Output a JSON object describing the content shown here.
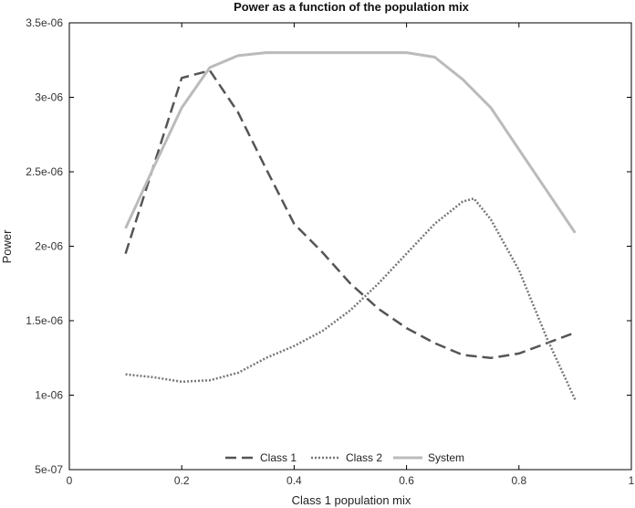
{
  "chart_data": {
    "type": "line",
    "title": "Power as a function of the population mix",
    "xlabel": "Class 1 population mix",
    "ylabel": "Power",
    "xlim": [
      0,
      1
    ],
    "ylim": [
      5e-07,
      3.5e-06
    ],
    "xticks": [
      0,
      0.2,
      0.4,
      0.6,
      0.8,
      1
    ],
    "xtick_labels": [
      "0",
      "0.2",
      "0.4",
      "0.6",
      "0.8",
      "1"
    ],
    "yticks": [
      5e-07,
      1e-06,
      1.5e-06,
      2e-06,
      2.5e-06,
      3e-06,
      3.5e-06
    ],
    "ytick_labels": [
      "5e-07",
      "1e-06",
      "1.5e-06",
      "2e-06",
      "2.5e-06",
      "3e-06",
      "3.5e-06"
    ],
    "grid": false,
    "legend_position": "bottom-center",
    "series": [
      {
        "name": "Class 1",
        "style": "dashed",
        "color": "#555555",
        "x": [
          0.1,
          0.2,
          0.25,
          0.3,
          0.35,
          0.4,
          0.45,
          0.5,
          0.55,
          0.6,
          0.65,
          0.7,
          0.75,
          0.8,
          0.85,
          0.9
        ],
        "y": [
          1.95e-06,
          3.13e-06,
          3.18e-06,
          2.9e-06,
          2.52e-06,
          2.15e-06,
          1.96e-06,
          1.75e-06,
          1.58e-06,
          1.45e-06,
          1.35e-06,
          1.27e-06,
          1.25e-06,
          1.28e-06,
          1.35e-06,
          1.42e-06
        ]
      },
      {
        "name": "Class 2",
        "style": "dotted",
        "color": "#777777",
        "x": [
          0.1,
          0.15,
          0.2,
          0.25,
          0.3,
          0.35,
          0.4,
          0.45,
          0.5,
          0.55,
          0.6,
          0.65,
          0.7,
          0.72,
          0.75,
          0.8,
          0.85,
          0.9
        ],
        "y": [
          1.14e-06,
          1.12e-06,
          1.09e-06,
          1.1e-06,
          1.15e-06,
          1.25e-06,
          1.33e-06,
          1.43e-06,
          1.57e-06,
          1.75e-06,
          1.95e-06,
          2.15e-06,
          2.3e-06,
          2.32e-06,
          2.18e-06,
          1.84e-06,
          1.38e-06,
          9.7e-07
        ]
      },
      {
        "name": "System",
        "style": "solid",
        "color": "#bbbbbb",
        "x": [
          0.1,
          0.15,
          0.2,
          0.25,
          0.3,
          0.35,
          0.4,
          0.45,
          0.5,
          0.55,
          0.6,
          0.65,
          0.7,
          0.75,
          0.8,
          0.85,
          0.9
        ],
        "y": [
          2.12e-06,
          2.53e-06,
          2.93e-06,
          3.2e-06,
          3.28e-06,
          3.3e-06,
          3.3e-06,
          3.3e-06,
          3.3e-06,
          3.3e-06,
          3.3e-06,
          3.27e-06,
          3.12e-06,
          2.93e-06,
          2.65e-06,
          2.37e-06,
          2.09e-06
        ]
      }
    ]
  }
}
